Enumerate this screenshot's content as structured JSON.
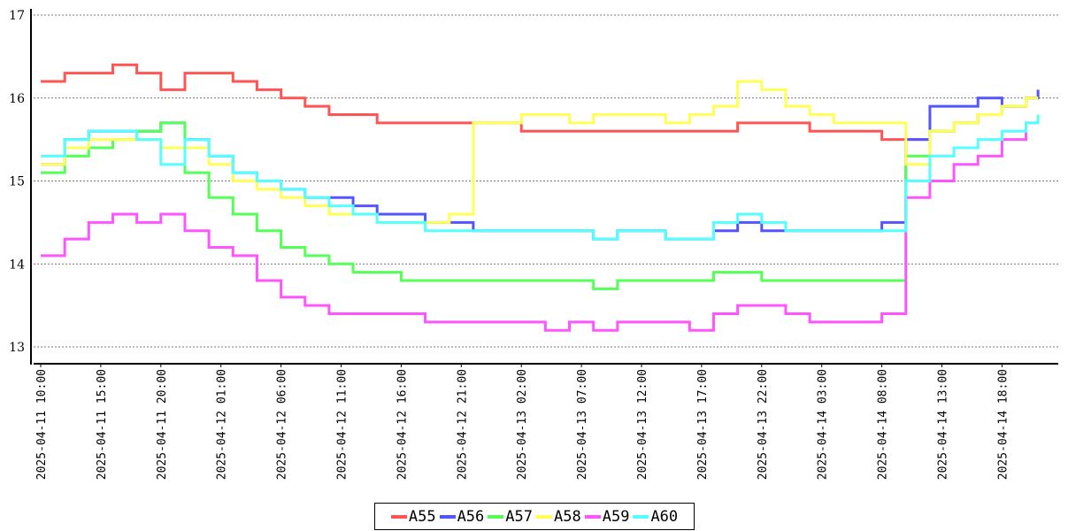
{
  "chart_data": {
    "type": "line",
    "y_ticks": [
      "13",
      "14",
      "15",
      "16",
      "17"
    ],
    "ylim": [
      13,
      17
    ],
    "x_ticks": [
      "2025-04-11 10:00",
      "2025-04-11 15:00",
      "2025-04-11 20:00",
      "2025-04-12 01:00",
      "2025-04-12 06:00",
      "2025-04-12 11:00",
      "2025-04-12 16:00",
      "2025-04-12 21:00",
      "2025-04-13 02:00",
      "2025-04-13 07:00",
      "2025-04-13 12:00",
      "2025-04-13 17:00",
      "2025-04-13 22:00",
      "2025-04-14 03:00",
      "2025-04-14 08:00",
      "2025-04-14 13:00",
      "2025-04-14 18:00"
    ],
    "grid": "horizontal dotted",
    "legend_position": "bottom-center",
    "x": [
      "2025-04-11 10:00",
      "2025-04-11 12:00",
      "2025-04-11 14:00",
      "2025-04-11 16:00",
      "2025-04-11 18:00",
      "2025-04-11 20:00",
      "2025-04-11 22:00",
      "2025-04-12 00:00",
      "2025-04-12 02:00",
      "2025-04-12 04:00",
      "2025-04-12 06:00",
      "2025-04-12 08:00",
      "2025-04-12 10:00",
      "2025-04-12 12:00",
      "2025-04-12 14:00",
      "2025-04-12 16:00",
      "2025-04-12 18:00",
      "2025-04-12 20:00",
      "2025-04-12 22:00",
      "2025-04-13 00:00",
      "2025-04-13 02:00",
      "2025-04-13 04:00",
      "2025-04-13 06:00",
      "2025-04-13 08:00",
      "2025-04-13 10:00",
      "2025-04-13 12:00",
      "2025-04-13 14:00",
      "2025-04-13 16:00",
      "2025-04-13 18:00",
      "2025-04-13 20:00",
      "2025-04-13 22:00",
      "2025-04-14 00:00",
      "2025-04-14 02:00",
      "2025-04-14 04:00",
      "2025-04-14 06:00",
      "2025-04-14 08:00",
      "2025-04-14 10:00",
      "2025-04-14 12:00",
      "2025-04-14 14:00",
      "2025-04-14 16:00",
      "2025-04-14 18:00",
      "2025-04-14 20:00",
      "2025-04-14 21:00"
    ],
    "series": [
      {
        "name": "A55",
        "color": "#ff5555",
        "values": [
          16.2,
          16.3,
          16.3,
          16.4,
          16.3,
          16.1,
          16.3,
          16.3,
          16.2,
          16.1,
          16.0,
          15.9,
          15.8,
          15.8,
          15.7,
          15.7,
          15.7,
          15.7,
          15.7,
          15.7,
          15.6,
          15.6,
          15.6,
          15.6,
          15.6,
          15.6,
          15.6,
          15.6,
          15.6,
          15.7,
          15.7,
          15.7,
          15.6,
          15.6,
          15.6,
          15.5,
          15.5,
          15.6,
          15.7,
          15.8,
          15.9,
          16.0,
          16.0
        ]
      },
      {
        "name": "A56",
        "color": "#5555ff",
        "values": [
          15.2,
          15.5,
          15.6,
          15.6,
          15.6,
          15.7,
          15.5,
          15.3,
          15.1,
          15.0,
          14.9,
          14.8,
          14.8,
          14.7,
          14.6,
          14.6,
          14.5,
          14.5,
          14.4,
          14.4,
          14.4,
          14.4,
          14.4,
          14.3,
          14.4,
          14.4,
          14.3,
          14.3,
          14.4,
          14.5,
          14.4,
          14.4,
          14.4,
          14.4,
          14.4,
          14.5,
          15.5,
          15.9,
          15.9,
          16.0,
          15.9,
          16.0,
          16.1
        ]
      },
      {
        "name": "A57",
        "color": "#55ff55",
        "values": [
          15.1,
          15.3,
          15.4,
          15.5,
          15.6,
          15.7,
          15.1,
          14.8,
          14.6,
          14.4,
          14.2,
          14.1,
          14.0,
          13.9,
          13.9,
          13.8,
          13.8,
          13.8,
          13.8,
          13.8,
          13.8,
          13.8,
          13.8,
          13.7,
          13.8,
          13.8,
          13.8,
          13.8,
          13.9,
          13.9,
          13.8,
          13.8,
          13.8,
          13.8,
          13.8,
          13.8,
          15.3,
          15.6,
          15.7,
          15.8,
          15.9,
          16.0,
          16.0
        ]
      },
      {
        "name": "A58",
        "color": "#ffff55",
        "values": [
          15.2,
          15.4,
          15.5,
          15.5,
          15.5,
          15.4,
          15.4,
          15.2,
          15.0,
          14.9,
          14.8,
          14.7,
          14.6,
          14.6,
          14.5,
          14.5,
          14.5,
          14.6,
          15.7,
          15.7,
          15.8,
          15.8,
          15.7,
          15.8,
          15.8,
          15.8,
          15.7,
          15.8,
          15.9,
          16.2,
          16.1,
          15.9,
          15.8,
          15.7,
          15.7,
          15.7,
          15.2,
          15.6,
          15.7,
          15.8,
          15.9,
          16.0,
          16.0
        ]
      },
      {
        "name": "A59",
        "color": "#ff55ff",
        "values": [
          14.1,
          14.3,
          14.5,
          14.6,
          14.5,
          14.6,
          14.4,
          14.2,
          14.1,
          13.8,
          13.6,
          13.5,
          13.4,
          13.4,
          13.4,
          13.4,
          13.3,
          13.3,
          13.3,
          13.3,
          13.3,
          13.2,
          13.3,
          13.2,
          13.3,
          13.3,
          13.3,
          13.2,
          13.4,
          13.5,
          13.5,
          13.4,
          13.3,
          13.3,
          13.3,
          13.4,
          14.8,
          15.0,
          15.2,
          15.3,
          15.5,
          15.7,
          15.7
        ]
      },
      {
        "name": "A60",
        "color": "#55ffff",
        "values": [
          15.3,
          15.5,
          15.6,
          15.6,
          15.5,
          15.2,
          15.5,
          15.3,
          15.1,
          15.0,
          14.9,
          14.8,
          14.7,
          14.6,
          14.5,
          14.5,
          14.4,
          14.4,
          14.4,
          14.4,
          14.4,
          14.4,
          14.4,
          14.3,
          14.4,
          14.4,
          14.3,
          14.3,
          14.5,
          14.6,
          14.5,
          14.4,
          14.4,
          14.4,
          14.4,
          14.4,
          15.0,
          15.3,
          15.4,
          15.5,
          15.6,
          15.7,
          15.8
        ]
      }
    ]
  }
}
